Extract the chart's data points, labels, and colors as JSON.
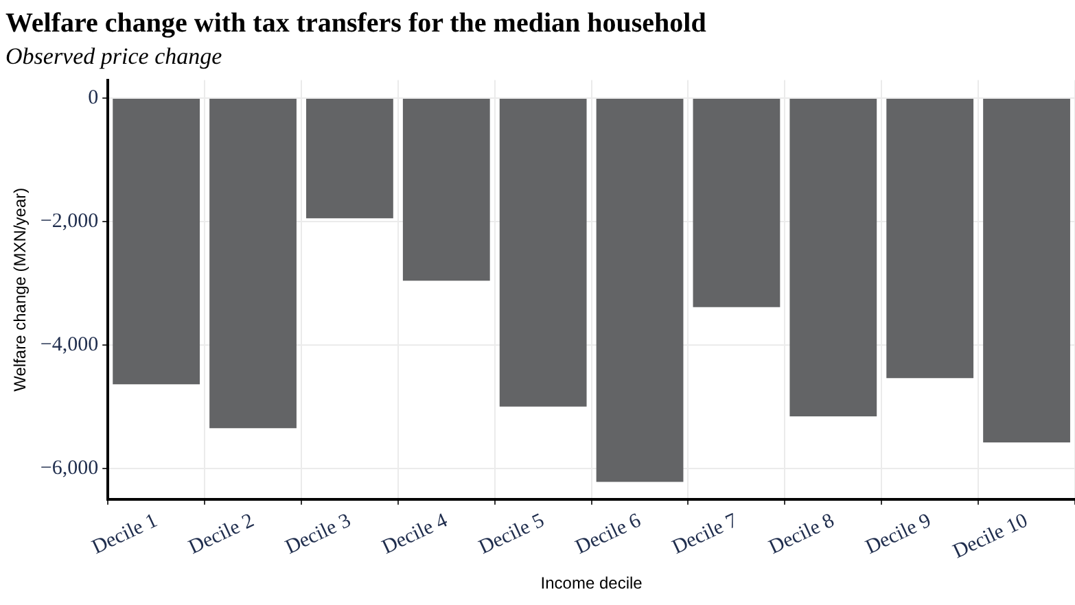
{
  "chart_data": {
    "type": "bar",
    "title": "Welfare change with tax transfers for the median household",
    "subtitle": "Observed price change",
    "xlabel": "Income decile",
    "ylabel": "Welfare change (MXN/year)",
    "categories": [
      "Decile 1",
      "Decile 2",
      "Decile 3",
      "Decile 4",
      "Decile 5",
      "Decile 6",
      "Decile 7",
      "Decile 8",
      "Decile 9",
      "Decile 10"
    ],
    "values": [
      -4640,
      -5350,
      -1950,
      -2960,
      -5000,
      -6220,
      -3390,
      -5160,
      -4540,
      -5580
    ],
    "color": "#636466",
    "ylim": [
      -6500,
      290
    ],
    "yticks": [
      {
        "value": 0,
        "label": "0"
      },
      {
        "value": -2000,
        "label": "−2,000"
      },
      {
        "value": -4000,
        "label": "−4,000"
      },
      {
        "value": -6000,
        "label": "−6,000"
      }
    ],
    "grid": true
  }
}
